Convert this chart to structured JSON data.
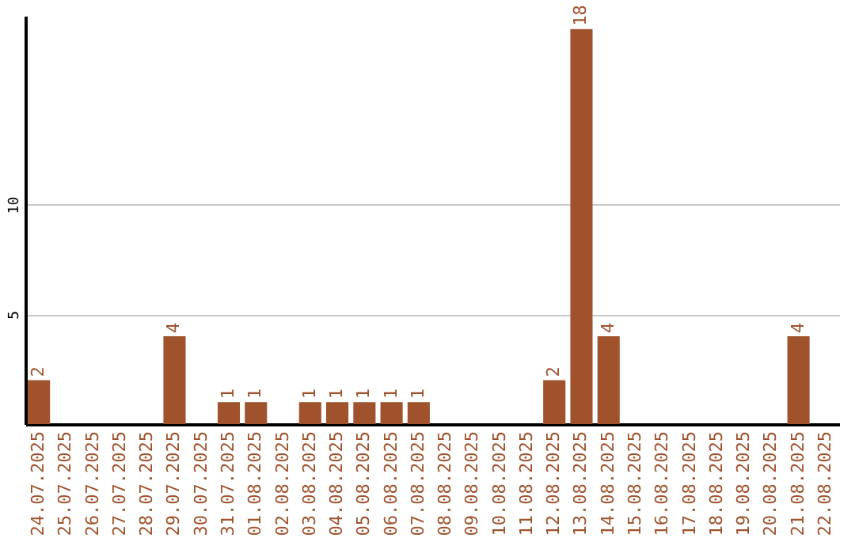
{
  "chart_data": {
    "type": "bar",
    "categories": [
      "24.07.2025",
      "25.07.2025",
      "26.07.2025",
      "27.07.2025",
      "28.07.2025",
      "29.07.2025",
      "30.07.2025",
      "31.07.2025",
      "01.08.2025",
      "02.08.2025",
      "03.08.2025",
      "04.08.2025",
      "05.08.2025",
      "06.08.2025",
      "07.08.2025",
      "08.08.2025",
      "09.08.2025",
      "10.08.2025",
      "11.08.2025",
      "12.08.2025",
      "13.08.2025",
      "14.08.2025",
      "15.08.2025",
      "16.08.2025",
      "17.08.2025",
      "18.08.2025",
      "19.08.2025",
      "20.08.2025",
      "21.08.2025",
      "22.08.2025"
    ],
    "values": [
      2,
      0,
      0,
      0,
      0,
      4,
      0,
      1,
      1,
      0,
      1,
      1,
      1,
      1,
      1,
      0,
      0,
      0,
      0,
      2,
      18,
      4,
      0,
      0,
      0,
      0,
      0,
      0,
      4,
      0
    ],
    "value_labels": [
      "2",
      null,
      null,
      null,
      null,
      "4",
      null,
      "1",
      "1",
      null,
      "1",
      "1",
      "1",
      "1",
      "1",
      null,
      null,
      null,
      null,
      "2",
      "18",
      "4",
      null,
      null,
      null,
      null,
      null,
      null,
      "4",
      null
    ],
    "color": "#a0522d",
    "ylim": [
      0,
      18.6
    ],
    "yticks": [
      5,
      10
    ],
    "grid": "y"
  }
}
